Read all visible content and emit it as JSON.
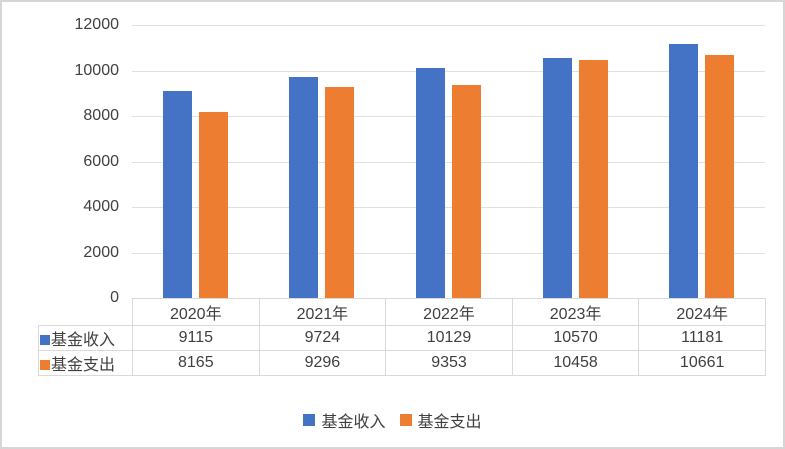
{
  "chart_data": {
    "type": "bar",
    "title": "",
    "xlabel": "",
    "ylabel": "",
    "categories": [
      "2020年",
      "2021年",
      "2022年",
      "2023年",
      "2024年"
    ],
    "series": [
      {
        "name": "基金收入",
        "color": "#4472C4",
        "values": [
          9115,
          9724,
          10129,
          10570,
          11181
        ]
      },
      {
        "name": "基金支出",
        "color": "#ED7D31",
        "values": [
          8165,
          9296,
          9353,
          10458,
          10661
        ]
      }
    ],
    "ylim": [
      0,
      12000
    ],
    "yticks": [
      0,
      2000,
      4000,
      6000,
      8000,
      10000,
      12000
    ],
    "grid": "horizontal",
    "legend_position": "bottom",
    "data_table_shown": true
  },
  "colors": {
    "grid_line": "#e0e0e0",
    "table_border": "#d9d9d9",
    "text": "#404040",
    "figure_border": "#d6d6d6",
    "background": "#ffffff"
  }
}
